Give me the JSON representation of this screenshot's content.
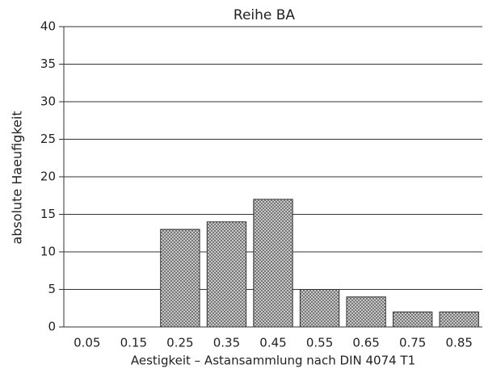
{
  "chart_data": {
    "type": "bar",
    "title": "Reihe BA",
    "x_label": "Aestigkeit  –  Astansammlung nach DIN 4074 T1",
    "y_label": "absolute Haeufigkeit",
    "categories": [
      "0.05",
      "0.15",
      "0.25",
      "0.35",
      "0.45",
      "0.55",
      "0.65",
      "0.75",
      "0.85"
    ],
    "values": [
      0,
      0,
      13,
      14,
      17,
      5,
      4,
      2,
      2
    ],
    "color": "#bdbdbd",
    "ylim": [
      0,
      40
    ],
    "yticks": [
      0,
      5,
      10,
      15,
      20,
      25,
      30,
      35,
      40
    ],
    "grid": true
  }
}
